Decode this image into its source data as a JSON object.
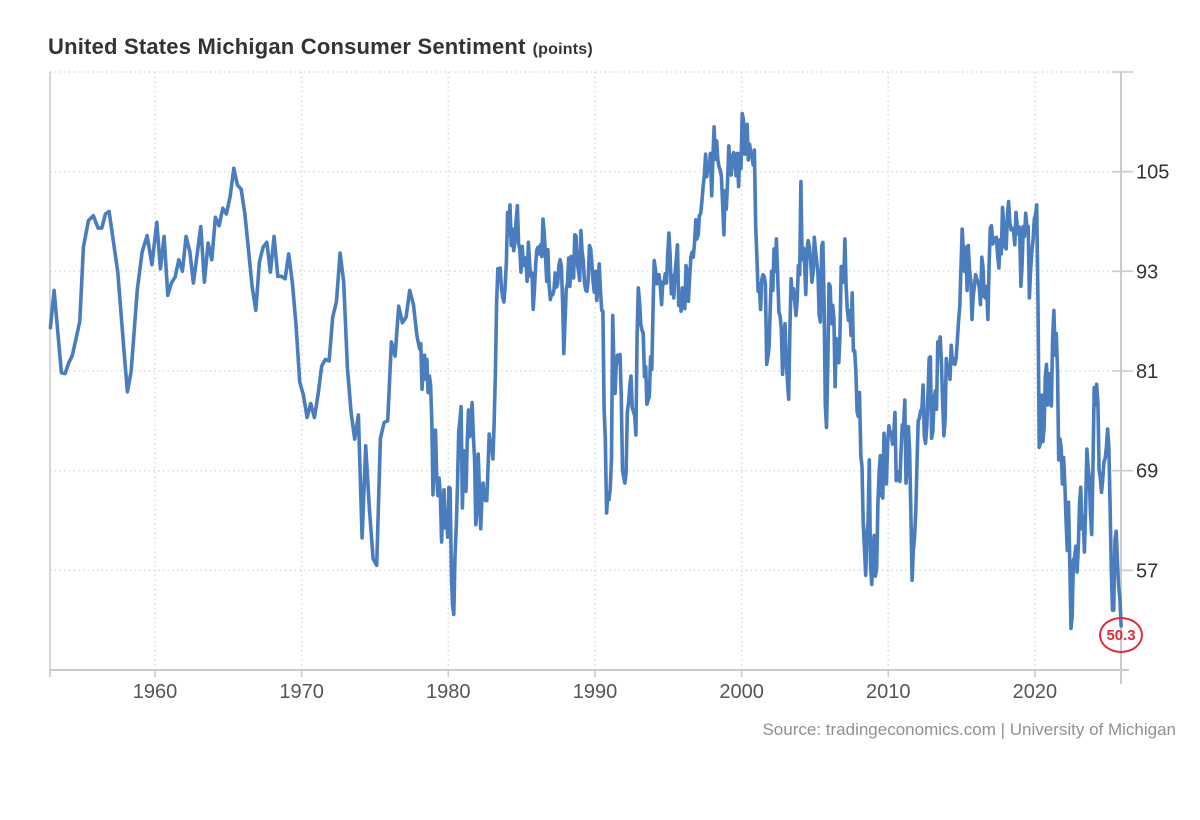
{
  "header": {
    "title": "United States Michigan Consumer Sentiment",
    "unit_label": "(points)"
  },
  "source": {
    "text": "Source: tradingeconomics.com | University of Michigan"
  },
  "annotation": {
    "value_label": "50.3",
    "color": "#e62838"
  },
  "chart_data": {
    "type": "line",
    "title": "United States Michigan Consumer Sentiment",
    "ylabel": "points",
    "legend": "none",
    "grid": "dotted",
    "line_color": "#4a7dbd",
    "grid_color": "#dcdcdc",
    "axis_color": "#cbcbcb",
    "y_label_color": "#333333",
    "x_label_color": "#555555",
    "x_range": [
      1952.84,
      2025.87
    ],
    "y_range": [
      45,
      117
    ],
    "y_gridlines": [
      57,
      69,
      81,
      93,
      105,
      117
    ],
    "y_ticks": [
      57,
      69,
      81,
      93,
      105
    ],
    "y_tick_labels": [
      "57",
      "69",
      "81",
      "93",
      "105"
    ],
    "x_ticks": [
      1960,
      1970,
      1980,
      1990,
      2000,
      2010,
      2020
    ],
    "x_tick_labels": [
      "1960",
      "1970",
      "1980",
      "1990",
      "2000",
      "2010",
      "2020"
    ],
    "last_value": 50.3,
    "series": [
      {
        "name": "Michigan Consumer Sentiment",
        "pre_1978_points": [
          [
            1952.87,
            86.2
          ],
          [
            1953.12,
            90.7
          ],
          [
            1953.62,
            80.8
          ],
          [
            1953.87,
            80.7
          ],
          [
            1954.12,
            82.0
          ],
          [
            1954.37,
            82.9
          ],
          [
            1954.87,
            87.0
          ],
          [
            1955.12,
            95.9
          ],
          [
            1955.46,
            99.1
          ],
          [
            1955.79,
            99.7
          ],
          [
            1956.12,
            98.2
          ],
          [
            1956.37,
            98.2
          ],
          [
            1956.62,
            99.9
          ],
          [
            1956.87,
            100.2
          ],
          [
            1957.46,
            92.9
          ],
          [
            1957.87,
            83.7
          ],
          [
            1958.12,
            78.5
          ],
          [
            1958.37,
            80.9
          ],
          [
            1958.79,
            90.8
          ],
          [
            1959.12,
            95.3
          ],
          [
            1959.46,
            97.3
          ],
          [
            1959.79,
            93.8
          ],
          [
            1960.12,
            98.9
          ],
          [
            1960.37,
            93.3
          ],
          [
            1960.62,
            97.2
          ],
          [
            1960.87,
            90.1
          ],
          [
            1961.12,
            91.6
          ],
          [
            1961.37,
            92.3
          ],
          [
            1961.62,
            94.4
          ],
          [
            1961.87,
            93.0
          ],
          [
            1962.12,
            97.2
          ],
          [
            1962.37,
            95.4
          ],
          [
            1962.62,
            91.6
          ],
          [
            1962.87,
            95.0
          ],
          [
            1963.12,
            98.4
          ],
          [
            1963.37,
            91.7
          ],
          [
            1963.62,
            96.4
          ],
          [
            1963.87,
            94.4
          ],
          [
            1964.12,
            99.5
          ],
          [
            1964.37,
            98.5
          ],
          [
            1964.62,
            100.6
          ],
          [
            1964.87,
            99.9
          ],
          [
            1965.12,
            102.0
          ],
          [
            1965.37,
            105.4
          ],
          [
            1965.62,
            103.4
          ],
          [
            1965.87,
            102.9
          ],
          [
            1966.12,
            100.0
          ],
          [
            1966.37,
            95.7
          ],
          [
            1966.62,
            91.2
          ],
          [
            1966.87,
            88.3
          ],
          [
            1967.12,
            94.1
          ],
          [
            1967.37,
            95.9
          ],
          [
            1967.62,
            96.5
          ],
          [
            1967.87,
            92.9
          ],
          [
            1968.12,
            97.2
          ],
          [
            1968.37,
            92.4
          ],
          [
            1968.62,
            92.4
          ],
          [
            1968.87,
            92.1
          ],
          [
            1969.12,
            95.1
          ],
          [
            1969.37,
            91.6
          ],
          [
            1969.62,
            86.4
          ],
          [
            1969.87,
            79.7
          ],
          [
            1970.12,
            78.1
          ],
          [
            1970.37,
            75.4
          ],
          [
            1970.62,
            77.1
          ],
          [
            1970.87,
            75.4
          ],
          [
            1971.12,
            78.2
          ],
          [
            1971.37,
            81.6
          ],
          [
            1971.62,
            82.4
          ],
          [
            1971.87,
            82.2
          ],
          [
            1972.12,
            87.5
          ],
          [
            1972.37,
            89.3
          ],
          [
            1972.62,
            95.2
          ],
          [
            1972.87,
            91.7
          ],
          [
            1973.12,
            81.4
          ],
          [
            1973.37,
            76.0
          ],
          [
            1973.62,
            72.8
          ],
          [
            1973.87,
            75.7
          ],
          [
            1974.12,
            60.9
          ],
          [
            1974.37,
            72.0
          ],
          [
            1974.62,
            64.4
          ],
          [
            1974.87,
            58.4
          ],
          [
            1975.12,
            57.6
          ],
          [
            1975.37,
            72.9
          ],
          [
            1975.62,
            74.8
          ],
          [
            1975.87,
            75.0
          ],
          [
            1976.12,
            84.5
          ],
          [
            1976.37,
            82.8
          ],
          [
            1976.62,
            88.8
          ],
          [
            1976.87,
            86.8
          ],
          [
            1977.12,
            87.5
          ],
          [
            1977.37,
            90.7
          ],
          [
            1977.62,
            89.0
          ],
          [
            1977.87,
            85.1
          ]
        ],
        "monthly_start_year": 1978,
        "monthly_values_by_year": [
          [
            83.7,
            84.3,
            78.8,
            81.6,
            82.9,
            80.0,
            82.4,
            78.4,
            80.4,
            79.3,
            75.0,
            66.1
          ],
          [
            72.1,
            73.9,
            68.4,
            66.0,
            68.1,
            65.8,
            60.4,
            64.5,
            66.7,
            62.1,
            63.3,
            61.0
          ],
          [
            67.0,
            66.9,
            56.5,
            52.7,
            51.7,
            58.7,
            62.3,
            67.3,
            73.7,
            75.0,
            76.7,
            64.5
          ],
          [
            71.4,
            66.9,
            66.5,
            72.4,
            76.3,
            73.1,
            74.1,
            77.2,
            73.1,
            70.3,
            62.5,
            64.3
          ],
          [
            71.0,
            66.5,
            62.0,
            65.5,
            67.5,
            65.7,
            65.4,
            65.4,
            69.3,
            73.4,
            72.1,
            71.9
          ],
          [
            70.4,
            74.6,
            80.8,
            89.1,
            93.3,
            92.2,
            93.4,
            90.9,
            89.9,
            89.3,
            91.1,
            94.2
          ],
          [
            100.1,
            97.4,
            101.0,
            96.1,
            98.1,
            95.5,
            96.6,
            99.1,
            100.9,
            96.3,
            95.7,
            92.9
          ],
          [
            96.0,
            93.7,
            93.7,
            94.6,
            91.8,
            96.5,
            94.0,
            92.4,
            92.8,
            88.4,
            90.9,
            93.9
          ],
          [
            95.6,
            95.9,
            95.1,
            96.2,
            94.8,
            99.3,
            97.7,
            94.9,
            91.8,
            95.6,
            91.4,
            89.6
          ],
          [
            90.4,
            90.2,
            90.8,
            92.8,
            91.1,
            91.5,
            93.7,
            94.4,
            93.6,
            89.3,
            83.1,
            86.8
          ],
          [
            90.8,
            91.6,
            94.6,
            91.2,
            94.8,
            94.7,
            92.2,
            97.4,
            97.3,
            94.1,
            93.0,
            91.9
          ],
          [
            97.9,
            95.4,
            94.3,
            91.5,
            90.7,
            90.6,
            92.0,
            96.1,
            95.7,
            93.9,
            91.7,
            90.5
          ],
          [
            93.0,
            89.5,
            91.3,
            93.9,
            90.6,
            88.3,
            88.2,
            76.4,
            72.8,
            63.9,
            66.0,
            65.5
          ],
          [
            66.8,
            70.4,
            87.7,
            81.8,
            78.3,
            82.1,
            82.9,
            82.0,
            83.0,
            78.3,
            69.1,
            68.2
          ],
          [
            67.5,
            68.8,
            76.0,
            77.2,
            79.2,
            80.4,
            76.6,
            76.1,
            75.6,
            73.3,
            85.3,
            91.0
          ],
          [
            89.3,
            86.6,
            85.9,
            85.6,
            80.3,
            81.5,
            77.0,
            77.5,
            77.9,
            82.7,
            81.2,
            88.2
          ],
          [
            94.3,
            93.2,
            91.5,
            92.6,
            92.6,
            91.2,
            89.0,
            91.7,
            91.5,
            92.7,
            91.6,
            95.1
          ],
          [
            97.6,
            95.1,
            90.3,
            92.5,
            89.8,
            92.7,
            94.4,
            96.2,
            88.9,
            90.2,
            88.2,
            91.0
          ],
          [
            89.3,
            88.5,
            93.7,
            92.7,
            89.4,
            92.4,
            94.7,
            95.3,
            94.7,
            96.5,
            99.2,
            96.9
          ],
          [
            97.4,
            99.7,
            100.0,
            101.4,
            103.2,
            104.5,
            107.1,
            104.4,
            106.0,
            105.6,
            107.2,
            102.1
          ],
          [
            106.6,
            110.4,
            106.5,
            108.7,
            106.5,
            105.6,
            105.2,
            104.4,
            100.9,
            97.4,
            102.7,
            100.5
          ],
          [
            103.9,
            108.1,
            105.7,
            104.6,
            106.8,
            107.3,
            106.0,
            104.5,
            107.2,
            103.2,
            107.2,
            105.4
          ],
          [
            112.0,
            111.3,
            107.1,
            109.2,
            110.7,
            106.4,
            108.3,
            107.3,
            106.8,
            105.8,
            107.6,
            98.4
          ],
          [
            94.7,
            90.6,
            91.5,
            88.4,
            92.0,
            92.6,
            92.4,
            91.5,
            81.8,
            82.7,
            83.9,
            88.8
          ],
          [
            93.0,
            90.7,
            95.7,
            93.0,
            96.9,
            92.4,
            88.1,
            87.6,
            86.1,
            80.6,
            84.2,
            86.7
          ],
          [
            82.4,
            79.9,
            77.6,
            86.0,
            92.1,
            89.7,
            90.9,
            89.3,
            87.7,
            89.6,
            93.7,
            92.6
          ],
          [
            103.8,
            94.4,
            95.8,
            94.2,
            90.2,
            95.6,
            96.7,
            95.9,
            94.2,
            91.7,
            92.8,
            97.1
          ],
          [
            95.5,
            94.1,
            92.6,
            87.7,
            86.9,
            96.0,
            96.5,
            89.1,
            76.9,
            74.2,
            81.6,
            91.5
          ],
          [
            91.2,
            86.7,
            88.9,
            87.4,
            79.1,
            84.9,
            84.7,
            82.0,
            85.4,
            93.6,
            92.1,
            91.7
          ],
          [
            96.9,
            91.3,
            88.4,
            87.1,
            88.3,
            85.3,
            90.4,
            83.4,
            83.4,
            80.9,
            76.1,
            75.5
          ],
          [
            78.4,
            70.8,
            69.5,
            62.6,
            59.8,
            56.4,
            61.2,
            63.0,
            70.3,
            57.6,
            55.3,
            60.1
          ],
          [
            61.2,
            56.3,
            57.3,
            65.1,
            68.7,
            70.8,
            66.0,
            65.7,
            73.5,
            70.6,
            67.4,
            72.5
          ],
          [
            74.4,
            73.6,
            73.6,
            72.2,
            73.6,
            76.0,
            67.8,
            68.9,
            68.2,
            67.7,
            71.6,
            74.5
          ],
          [
            74.2,
            77.5,
            67.5,
            69.8,
            74.3,
            71.5,
            63.7,
            55.8,
            59.4,
            60.9,
            64.1,
            69.9
          ],
          [
            75.0,
            75.3,
            76.2,
            76.4,
            79.3,
            73.2,
            72.3,
            74.3,
            78.3,
            82.6,
            82.7,
            72.9
          ],
          [
            73.8,
            77.6,
            78.6,
            76.4,
            84.5,
            84.1,
            85.1,
            82.1,
            77.5,
            73.2,
            75.1,
            82.5
          ],
          [
            81.2,
            81.6,
            80.0,
            84.1,
            81.9,
            82.5,
            81.8,
            82.5,
            84.6,
            86.9,
            88.8,
            93.6
          ],
          [
            98.1,
            95.4,
            93.0,
            95.9,
            90.7,
            96.1,
            93.1,
            91.9,
            87.2,
            90.0,
            91.3,
            92.6
          ],
          [
            92.0,
            91.7,
            91.0,
            89.0,
            94.7,
            93.5,
            90.0,
            89.8,
            91.2,
            87.2,
            93.8,
            98.2
          ],
          [
            98.5,
            96.3,
            96.9,
            97.0,
            97.1,
            95.0,
            93.4,
            96.8,
            95.1,
            100.7,
            98.5,
            95.9
          ],
          [
            95.7,
            99.7,
            101.4,
            98.8,
            98.0,
            98.2,
            97.9,
            96.2,
            100.1,
            98.6,
            97.5,
            98.3
          ],
          [
            91.2,
            93.8,
            98.4,
            97.2,
            100.0,
            98.2,
            98.4,
            89.8,
            93.2,
            95.5,
            96.8,
            99.3
          ],
          [
            99.8,
            101.0,
            89.1,
            71.8,
            72.3,
            78.1,
            72.5,
            74.1,
            80.4,
            81.8,
            76.9,
            80.7
          ],
          [
            79.0,
            76.8,
            84.9,
            88.3,
            82.9,
            85.5,
            81.2,
            70.3,
            72.8,
            71.7,
            67.4,
            70.6
          ],
          [
            67.2,
            62.8,
            59.4,
            65.2,
            58.4,
            50.0,
            51.5,
            58.2,
            58.6,
            59.9,
            56.8,
            59.7
          ],
          [
            64.9,
            67.0,
            62.0,
            63.5,
            59.2,
            64.4,
            71.6,
            69.5,
            68.1,
            63.8,
            61.3,
            69.7
          ],
          [
            79.0,
            76.9,
            79.4,
            77.2,
            69.1,
            68.2,
            66.4,
            67.9,
            70.1,
            70.5,
            71.8,
            74.0
          ],
          [
            71.7,
            64.7,
            57.0,
            52.2,
            52.2,
            60.7,
            61.7,
            58.2,
            55.1,
            53.6,
            50.3
          ]
        ]
      }
    ]
  }
}
